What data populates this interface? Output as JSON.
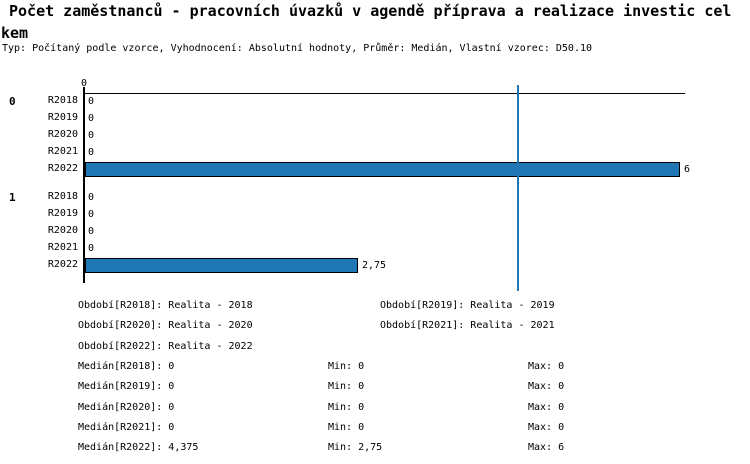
{
  "title": {
    "line1": "Počet zaměstnanců - pracovních úvazků v agendě příprava a realizace investic cel",
    "line2": "kem",
    "full_text": "Počet zaměstnanců - pracovních úvazků v agendě příprava a realizace investic celkem"
  },
  "subtitle": "Typ: Počítaný podle vzorce, Vyhodnocení: Absolutní hodnoty, Průměr: Medián, Vlastní vzorec: D50.10",
  "chart_data": {
    "type": "bar",
    "orientation": "horizontal",
    "title": "Počet zaměstnanců - pracovních úvazků v agendě příprava a realizace investic celkem",
    "xlabel": "",
    "ylabel": "",
    "x_axis": {
      "tick_labels": [
        "0"
      ],
      "tick_values": [
        0
      ],
      "min": 0,
      "max_extent": 6.06
    },
    "grid": false,
    "bar_color": "#1f77b4",
    "bar_border_color": "#000000",
    "median_line_color": "#2077b4",
    "median_line_value": 4.375,
    "groups": [
      {
        "label": "0",
        "rows": [
          {
            "category": "R2018",
            "value": 0,
            "value_label": "0"
          },
          {
            "category": "R2019",
            "value": 0,
            "value_label": "0"
          },
          {
            "category": "R2020",
            "value": 0,
            "value_label": "0"
          },
          {
            "category": "R2021",
            "value": 0,
            "value_label": "0"
          },
          {
            "category": "R2022",
            "value": 6,
            "value_label": "6"
          }
        ]
      },
      {
        "label": "1",
        "rows": [
          {
            "category": "R2018",
            "value": 0,
            "value_label": "0"
          },
          {
            "category": "R2019",
            "value": 0,
            "value_label": "0"
          },
          {
            "category": "R2020",
            "value": 0,
            "value_label": "0"
          },
          {
            "category": "R2021",
            "value": 0,
            "value_label": "0"
          },
          {
            "category": "R2022",
            "value": 2.75,
            "value_label": "2,75"
          }
        ]
      }
    ]
  },
  "legend": {
    "period_rows": [
      [
        "Období[R2018]: Realita - 2018",
        "Období[R2019]: Realita - 2019"
      ],
      [
        "Období[R2020]: Realita - 2020",
        "Období[R2021]: Realita - 2021"
      ],
      [
        "Období[R2022]: Realita - 2022",
        ""
      ]
    ],
    "stat_rows": [
      [
        "Medián[R2018]: 0",
        "Min: 0",
        "Max: 0"
      ],
      [
        "Medián[R2019]: 0",
        "Min: 0",
        "Max: 0"
      ],
      [
        "Medián[R2020]: 0",
        "Min: 0",
        "Max: 0"
      ],
      [
        "Medián[R2021]: 0",
        "Min: 0",
        "Max: 0"
      ],
      [
        "Medián[R2022]: 4,375",
        "Min: 2,75",
        "Max: 6"
      ]
    ]
  }
}
